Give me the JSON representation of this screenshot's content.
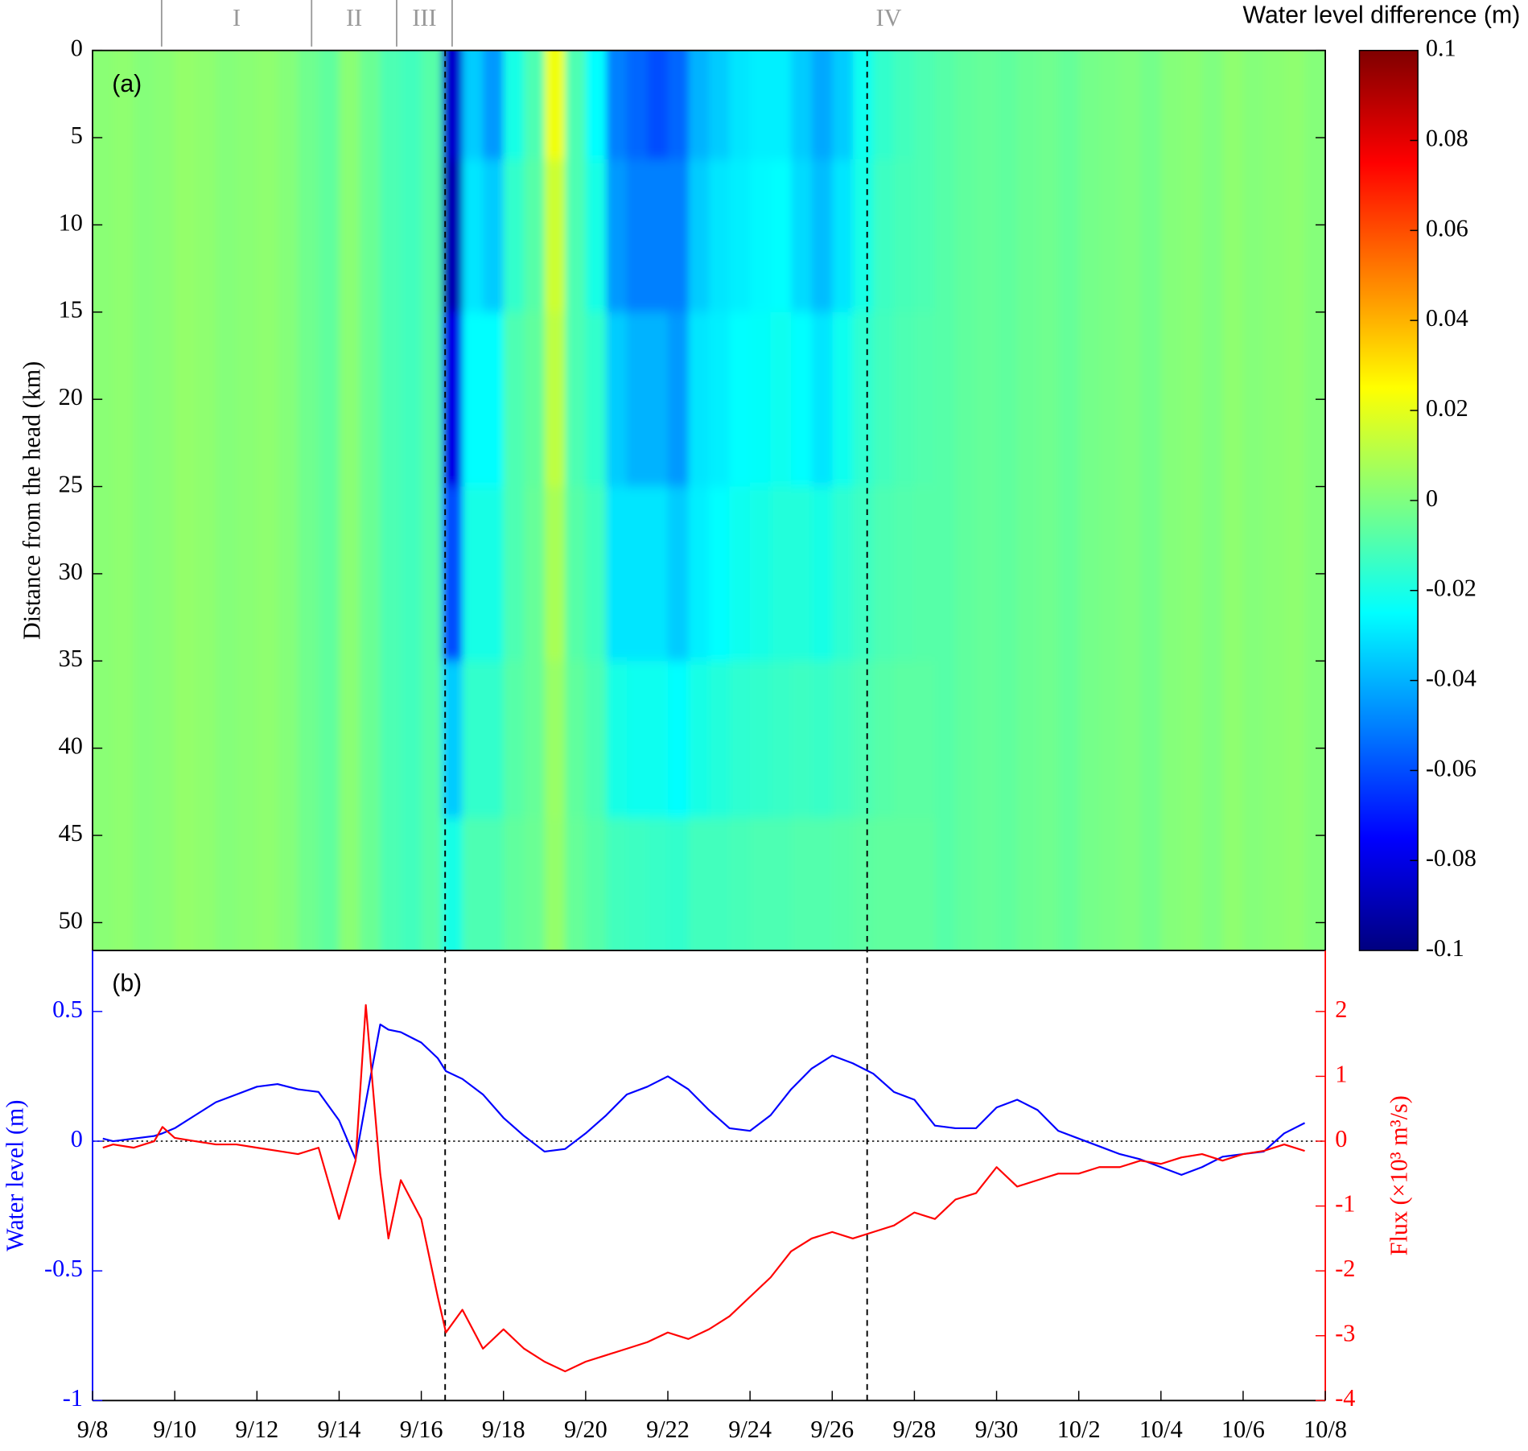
{
  "chart_data": [
    {
      "type": "heatmap",
      "panel_label": "(a)",
      "ylabel": "Distance from the head (km)",
      "x": [
        0.25,
        0.75,
        1.25,
        1.75,
        2.25,
        2.75,
        3.25,
        3.75,
        4.25,
        4.75,
        5.25,
        5.75,
        6.25,
        6.75,
        7.25,
        7.75,
        8.25,
        8.75,
        9.25,
        9.75,
        10.25,
        10.75,
        11.25,
        11.75,
        12.25,
        12.75,
        13.25,
        13.75,
        14.25,
        14.75,
        15.25,
        15.75,
        16.25,
        16.75,
        17.25,
        17.75,
        18.25,
        18.75,
        19.25,
        19.75,
        20.25,
        20.75,
        21.25,
        21.75,
        22.25,
        22.75,
        23.25,
        23.75,
        24.25,
        24.75,
        25.25,
        25.75,
        26.25,
        26.75,
        27.25,
        27.75,
        28.25,
        28.75,
        29.25,
        29.75
      ],
      "y": [
        2.5,
        10,
        20,
        30,
        40,
        48
      ],
      "z": [
        [
          0.002,
          0.002,
          0.002,
          0.002,
          0.002,
          0.002
        ],
        [
          0.003,
          0.003,
          0.003,
          0.003,
          0.003,
          0.003
        ],
        [
          0.001,
          0.001,
          0.001,
          0.001,
          0.001,
          0.001
        ],
        [
          0.002,
          0.002,
          0.002,
          0.002,
          0.002,
          0.002
        ],
        [
          0.004,
          0.004,
          0.004,
          0.004,
          0.004,
          0.004
        ],
        [
          0.003,
          0.003,
          0.003,
          0.003,
          0.003,
          0.003
        ],
        [
          0.001,
          0.001,
          0.001,
          0.001,
          0.001,
          0.001
        ],
        [
          0.002,
          0.002,
          0.002,
          0.002,
          0.002,
          0.002
        ],
        [
          0.003,
          0.003,
          0.003,
          0.003,
          0.003,
          0.003
        ],
        [
          0.001,
          0.001,
          0.001,
          0.001,
          0.001,
          0.001
        ],
        [
          -0.003,
          -0.003,
          -0.003,
          -0.003,
          -0.003,
          -0.003
        ],
        [
          -0.006,
          -0.006,
          -0.006,
          -0.006,
          -0.006,
          -0.006
        ],
        [
          0.002,
          0.002,
          0.002,
          0.002,
          0.002,
          0.002
        ],
        [
          -0.004,
          -0.004,
          -0.004,
          -0.004,
          -0.004,
          -0.004
        ],
        [
          -0.01,
          -0.01,
          -0.01,
          -0.01,
          -0.01,
          -0.01
        ],
        [
          -0.012,
          -0.012,
          -0.012,
          -0.012,
          -0.012,
          -0.012
        ],
        [
          -0.008,
          -0.008,
          -0.008,
          -0.008,
          -0.008,
          -0.008
        ],
        [
          -0.085,
          -0.09,
          -0.08,
          -0.06,
          -0.035,
          -0.02
        ],
        [
          -0.035,
          -0.03,
          -0.025,
          -0.02,
          -0.015,
          -0.01
        ],
        [
          -0.045,
          -0.035,
          -0.025,
          -0.02,
          -0.015,
          -0.01
        ],
        [
          -0.02,
          -0.015,
          -0.01,
          -0.01,
          -0.008,
          -0.006
        ],
        [
          -0.01,
          -0.008,
          -0.006,
          -0.005,
          -0.005,
          -0.004
        ],
        [
          0.022,
          0.015,
          0.012,
          0.008,
          0.005,
          0.004
        ],
        [
          -0.01,
          -0.01,
          -0.01,
          -0.008,
          -0.006,
          -0.005
        ],
        [
          -0.025,
          -0.02,
          -0.015,
          -0.012,
          -0.01,
          -0.008
        ],
        [
          -0.05,
          -0.045,
          -0.035,
          -0.03,
          -0.02,
          -0.012
        ],
        [
          -0.055,
          -0.05,
          -0.04,
          -0.03,
          -0.022,
          -0.013
        ],
        [
          -0.06,
          -0.05,
          -0.04,
          -0.03,
          -0.022,
          -0.014
        ],
        [
          -0.055,
          -0.05,
          -0.045,
          -0.035,
          -0.025,
          -0.015
        ],
        [
          -0.04,
          -0.035,
          -0.03,
          -0.028,
          -0.02,
          -0.012
        ],
        [
          -0.035,
          -0.03,
          -0.028,
          -0.025,
          -0.018,
          -0.012
        ],
        [
          -0.03,
          -0.028,
          -0.025,
          -0.022,
          -0.016,
          -0.011
        ],
        [
          -0.028,
          -0.026,
          -0.024,
          -0.02,
          -0.015,
          -0.01
        ],
        [
          -0.028,
          -0.025,
          -0.022,
          -0.018,
          -0.014,
          -0.01
        ],
        [
          -0.035,
          -0.032,
          -0.025,
          -0.018,
          -0.013,
          -0.009
        ],
        [
          -0.042,
          -0.038,
          -0.03,
          -0.02,
          -0.014,
          -0.009
        ],
        [
          -0.035,
          -0.03,
          -0.022,
          -0.016,
          -0.012,
          -0.008
        ],
        [
          -0.022,
          -0.02,
          -0.016,
          -0.013,
          -0.01,
          -0.007
        ],
        [
          -0.015,
          -0.013,
          -0.012,
          -0.01,
          -0.008,
          -0.006
        ],
        [
          -0.012,
          -0.011,
          -0.01,
          -0.009,
          -0.007,
          -0.006
        ],
        [
          -0.01,
          -0.01,
          -0.009,
          -0.008,
          -0.007,
          -0.006
        ],
        [
          -0.008,
          -0.008,
          -0.008,
          -0.008,
          -0.008,
          -0.008
        ],
        [
          -0.006,
          -0.006,
          -0.006,
          -0.006,
          -0.006,
          -0.006
        ],
        [
          -0.005,
          -0.005,
          -0.005,
          -0.005,
          -0.005,
          -0.005
        ],
        [
          -0.006,
          -0.006,
          -0.006,
          -0.006,
          -0.006,
          -0.006
        ],
        [
          -0.004,
          -0.004,
          -0.004,
          -0.004,
          -0.004,
          -0.004
        ],
        [
          -0.003,
          -0.003,
          -0.003,
          -0.003,
          -0.003,
          -0.003
        ],
        [
          -0.005,
          -0.005,
          -0.005,
          -0.005,
          -0.005,
          -0.005
        ],
        [
          -0.002,
          -0.002,
          -0.002,
          -0.002,
          -0.002,
          -0.002
        ],
        [
          -0.001,
          -0.001,
          -0.001,
          -0.001,
          -0.001,
          -0.001
        ],
        [
          0,
          0,
          0,
          0,
          0,
          0
        ],
        [
          -0.002,
          -0.002,
          -0.002,
          -0.002,
          -0.002,
          -0.002
        ],
        [
          0.001,
          0.001,
          0.001,
          0.001,
          0.001,
          0.001
        ],
        [
          0.002,
          0.002,
          0.002,
          0.002,
          0.002,
          0.002
        ],
        [
          0,
          0,
          0,
          0,
          0,
          0
        ],
        [
          0.003,
          0.003,
          0.003,
          0.003,
          0.003,
          0.003
        ],
        [
          0.001,
          0.001,
          0.001,
          0.001,
          0.001,
          0.001
        ],
        [
          0.002,
          0.002,
          0.002,
          0.002,
          0.002,
          0.002
        ],
        [
          0.003,
          0.003,
          0.003,
          0.003,
          0.003,
          0.003
        ],
        [
          0.001,
          0.001,
          0.001,
          0.001,
          0.001,
          0.001
        ]
      ],
      "xlim": [
        0,
        30
      ],
      "ylim": [
        0,
        51.6
      ],
      "y_reversed": true,
      "yticks": [
        0,
        5,
        10,
        15,
        20,
        25,
        30,
        35,
        40,
        45,
        50
      ],
      "colormap": "jet",
      "clim": [
        -0.1,
        0.1
      ],
      "colorbar_label": "Water level difference (m)",
      "colorbar_ticks": [
        0.1,
        0.08,
        0.06,
        0.04,
        0.02,
        0,
        -0.02,
        -0.04,
        -0.06,
        -0.08,
        -0.1
      ],
      "phases": {
        "labels": [
          "I",
          "II",
          "III",
          "IV"
        ],
        "bounds": [
          1.68,
          5.33,
          7.4,
          8.75,
          30
        ]
      },
      "vlines": [
        8.58,
        18.85
      ]
    },
    {
      "type": "line",
      "panel_label": "(b)",
      "ylabel": "Water level (m)",
      "y2label": "Flux (×10³ m³/s)",
      "x": [
        0.25,
        0.5,
        1,
        1.5,
        1.7,
        2,
        2.5,
        3,
        3.5,
        4,
        4.5,
        5,
        5.5,
        6,
        6.4,
        6.65,
        7,
        7.2,
        7.5,
        8,
        8.4,
        8.6,
        9,
        9.5,
        10,
        10.5,
        11,
        11.5,
        12,
        12.5,
        13,
        13.5,
        14,
        14.5,
        15,
        15.5,
        16,
        16.5,
        17,
        17.5,
        18,
        18.5,
        19,
        19.5,
        20,
        20.5,
        21,
        21.5,
        22,
        22.5,
        23,
        23.5,
        24,
        24.5,
        25,
        25.5,
        26,
        26.5,
        27,
        27.5,
        28,
        28.5,
        29,
        29.5
      ],
      "series": [
        {
          "color": "#0000ff",
          "values": [
            0.01,
            0.0,
            0.01,
            0.02,
            0.03,
            0.05,
            0.1,
            0.15,
            0.18,
            0.21,
            0.22,
            0.2,
            0.19,
            0.08,
            -0.07,
            0.15,
            0.45,
            0.43,
            0.42,
            0.38,
            0.32,
            0.27,
            0.24,
            0.18,
            0.09,
            0.02,
            -0.04,
            -0.03,
            0.03,
            0.1,
            0.18,
            0.21,
            0.25,
            0.2,
            0.12,
            0.05,
            0.04,
            0.1,
            0.2,
            0.28,
            0.33,
            0.3,
            0.26,
            0.19,
            0.16,
            0.06,
            0.05,
            0.05,
            0.13,
            0.16,
            0.12,
            0.04,
            0.01,
            -0.02,
            -0.05,
            -0.07,
            -0.1,
            -0.13,
            -0.1,
            -0.06,
            -0.05,
            -0.04,
            0.03,
            0.07
          ]
        },
        {
          "color": "#ff0000",
          "axis": "y2",
          "values": [
            -0.1,
            -0.05,
            -0.1,
            0.0,
            0.22,
            0.05,
            0.0,
            -0.05,
            -0.05,
            -0.1,
            -0.15,
            -0.2,
            -0.1,
            -1.2,
            -0.3,
            2.1,
            -0.5,
            -1.5,
            -0.6,
            -1.2,
            -2.4,
            -2.95,
            -2.6,
            -3.2,
            -2.9,
            -3.2,
            -3.4,
            -3.55,
            -3.4,
            -3.3,
            -3.2,
            -3.1,
            -2.95,
            -3.05,
            -2.9,
            -2.7,
            -2.4,
            -2.1,
            -1.7,
            -1.5,
            -1.4,
            -1.5,
            -1.4,
            -1.3,
            -1.1,
            -1.2,
            -0.9,
            -0.8,
            -0.4,
            -0.7,
            -0.6,
            -0.5,
            -0.5,
            -0.4,
            -0.4,
            -0.3,
            -0.35,
            -0.25,
            -0.2,
            -0.3,
            -0.2,
            -0.15,
            -0.05,
            -0.15
          ]
        }
      ],
      "xlim": [
        0,
        30
      ],
      "xticks": [
        {
          "value": 0,
          "label": "9/8"
        },
        {
          "value": 2,
          "label": "9/10"
        },
        {
          "value": 4,
          "label": "9/12"
        },
        {
          "value": 6,
          "label": "9/14"
        },
        {
          "value": 8,
          "label": "9/16"
        },
        {
          "value": 10,
          "label": "9/18"
        },
        {
          "value": 12,
          "label": "9/20"
        },
        {
          "value": 14,
          "label": "9/22"
        },
        {
          "value": 16,
          "label": "9/24"
        },
        {
          "value": 18,
          "label": "9/26"
        },
        {
          "value": 20,
          "label": "9/28"
        },
        {
          "value": 22,
          "label": "9/30"
        },
        {
          "value": 24,
          "label": "10/2"
        },
        {
          "value": 26,
          "label": "10/4"
        },
        {
          "value": 28,
          "label": "10/6"
        },
        {
          "value": 30,
          "label": "10/8"
        }
      ],
      "ylim": [
        -1,
        0.735
      ],
      "yticks": [
        0.5,
        0,
        -0.5,
        -1
      ],
      "y2lim": [
        -4,
        2.94
      ],
      "y2ticks": [
        2,
        1,
        0,
        -1,
        -2,
        -3,
        -4
      ]
    }
  ]
}
